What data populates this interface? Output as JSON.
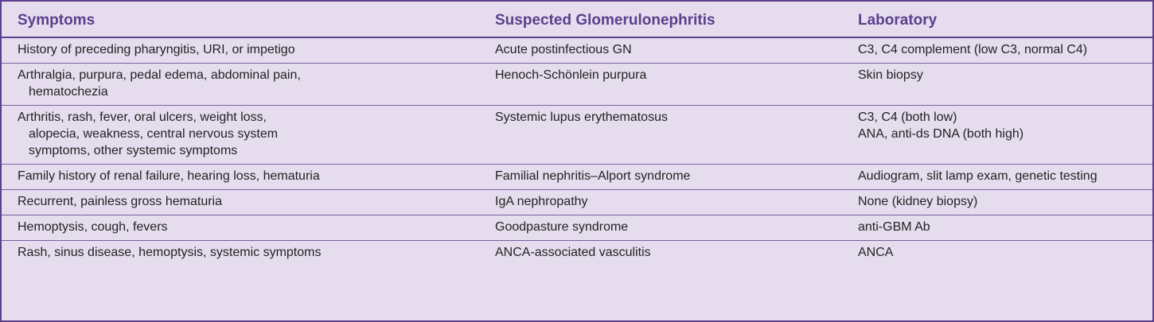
{
  "headers": [
    "Symptoms",
    "Suspected Glomerulonephritis",
    "Laboratory"
  ],
  "rows": [
    {
      "symptoms": [
        "History of preceding pharyngitis, URI, or impetigo"
      ],
      "gn": "Acute postinfectious GN",
      "lab": [
        "C3, C4 complement (low C3, normal C4)"
      ]
    },
    {
      "symptoms": [
        "Arthralgia, purpura, pedal edema, abdominal pain,",
        "hematochezia"
      ],
      "gn": "Henoch-Schönlein purpura",
      "lab": [
        "Skin biopsy"
      ]
    },
    {
      "symptoms": [
        "Arthritis, rash, fever, oral ulcers, weight loss,",
        "alopecia, weakness, central nervous system",
        "symptoms, other systemic symptoms"
      ],
      "gn": "Systemic lupus erythematosus",
      "lab": [
        "C3, C4 (both low)",
        "ANA, anti-ds DNA (both high)"
      ]
    },
    {
      "symptoms": [
        "Family history of renal failure, hearing loss, hematuria"
      ],
      "gn": "Familial nephritis–Alport syndrome",
      "lab": [
        "Audiogram, slit lamp exam, genetic testing"
      ]
    },
    {
      "symptoms": [
        "Recurrent, painless gross hematuria"
      ],
      "gn": "IgA nephropathy",
      "lab": [
        "None (kidney biopsy)"
      ]
    },
    {
      "symptoms": [
        "Hemoptysis, cough, fevers"
      ],
      "gn": "Goodpasture syndrome",
      "lab": [
        "anti-GBM Ab"
      ]
    },
    {
      "symptoms": [
        "Rash, sinus disease, hemoptysis, systemic symptoms"
      ],
      "gn": "ANCA-associated vasculitis",
      "lab": [
        "ANCA"
      ]
    }
  ],
  "colors": {
    "accent": "#5b3f8c",
    "background": "#e5ddee",
    "text": "#231f20"
  }
}
